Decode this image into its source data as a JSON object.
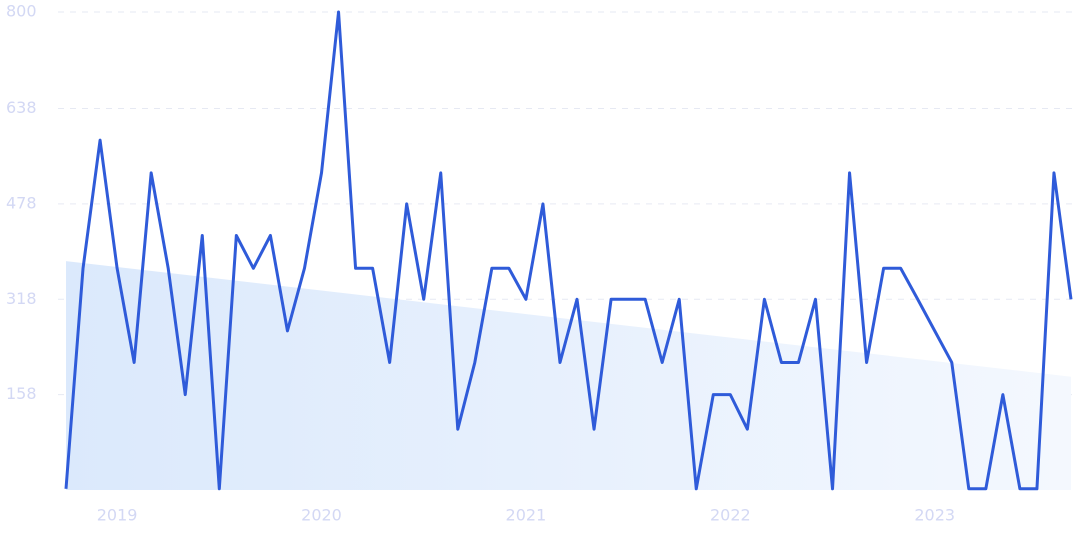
{
  "chart_data": {
    "type": "line",
    "categories": [
      null,
      null,
      null,
      "2019",
      null,
      null,
      null,
      null,
      null,
      null,
      null,
      null,
      null,
      null,
      null,
      "2020",
      null,
      null,
      null,
      null,
      null,
      null,
      null,
      null,
      null,
      null,
      null,
      "2021",
      null,
      null,
      null,
      null,
      null,
      null,
      null,
      null,
      null,
      null,
      null,
      "2022",
      null,
      null,
      null,
      null,
      null,
      null,
      null,
      null,
      null,
      null,
      null,
      "2023",
      null,
      null,
      null,
      null,
      null,
      null,
      null,
      null
    ],
    "series": [
      {
        "color": "#2f5bd9",
        "values": [
          0,
          370,
          585,
          370,
          212,
          530,
          370,
          158,
          425,
          0,
          425,
          370,
          425,
          265,
          370,
          530,
          800,
          370,
          370,
          212,
          478,
          318,
          530,
          100,
          212,
          370,
          370,
          318,
          478,
          212,
          318,
          100,
          318,
          318,
          318,
          212,
          318,
          0,
          158,
          158,
          100,
          318,
          212,
          212,
          318,
          0,
          530,
          212,
          370,
          370,
          318,
          265,
          212,
          0,
          0,
          158,
          0,
          0,
          530,
          318
        ]
      }
    ],
    "trend": {
      "start": 382,
      "end": 188,
      "color": "#dceafc"
    },
    "ylim": [
      -2,
      800
    ],
    "yticks": [
      158,
      318,
      478,
      638,
      800
    ],
    "grid": true
  }
}
